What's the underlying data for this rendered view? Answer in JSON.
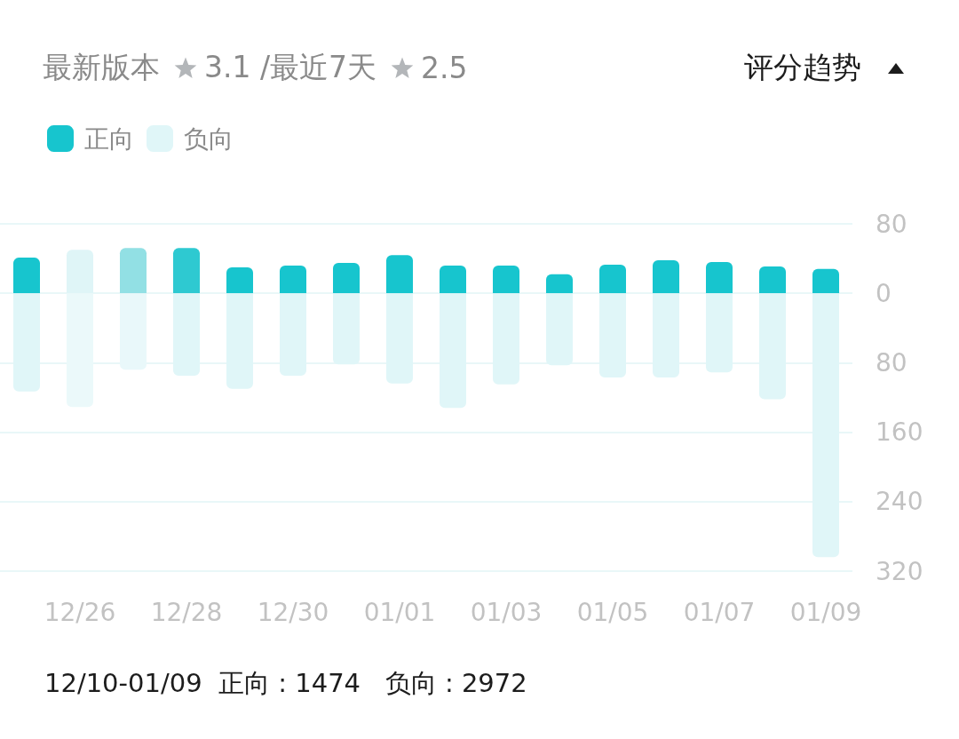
{
  "chart_data": {
    "type": "bar",
    "title": "评分趋势",
    "annotations": [
      "最新版本",
      "3.1 /最近7天",
      "2.5",
      "12/10-01/09  正向 : 1474   负向 : 2972"
    ],
    "categories": [
      null,
      "12/26",
      null,
      "12/28",
      null,
      "12/30",
      null,
      "01/01",
      null,
      "01/03",
      null,
      "01/05",
      null,
      "01/07",
      null,
      "01/09"
    ],
    "series": [
      {
        "name": "正向",
        "color": "#17c5ce",
        "colors": [
          "#17c5ce",
          "#dff5f7",
          "#92e0e4",
          "#2ec9d1",
          "#17c5ce",
          "#17c5ce",
          "#17c5ce",
          "#17c5ce",
          "#17c5ce",
          "#17c5ce",
          "#17c5ce",
          "#17c5ce",
          "#17c5ce",
          "#17c5ce",
          "#17c5ce",
          "#17c5ce"
        ],
        "values": [
          41,
          50,
          52,
          52,
          30,
          32,
          35,
          44,
          32,
          32,
          22,
          33,
          38,
          36,
          31,
          28
        ]
      },
      {
        "name": "负向",
        "color": "#e0f6f8",
        "colors": [
          "#e0f6f8",
          "#ebf9fa",
          "#e9f8fa",
          "#e0f6f8",
          "#e0f6f8",
          "#e0f6f8",
          "#e0f6f8",
          "#e0f6f8",
          "#e0f6f8",
          "#e0f6f8",
          "#e0f6f8",
          "#e0f6f8",
          "#e0f6f8",
          "#e0f6f8",
          "#e0f6f8",
          "#e0f6f8"
        ],
        "values": [
          -113,
          -131,
          -88,
          -95,
          -110,
          -95,
          -82,
          -104,
          -132,
          -105,
          -83,
          -97,
          -97,
          -91,
          -122,
          -304
        ]
      }
    ],
    "stacked": true,
    "ylim": [
      -320,
      80
    ],
    "yticks": [
      {
        "value": -320,
        "label": "320"
      },
      {
        "value": -240,
        "label": "240"
      },
      {
        "value": -160,
        "label": "160"
      },
      {
        "value": -80,
        "label": "80"
      },
      0,
      80
    ],
    "grid": "y",
    "legend": "top left"
  }
}
